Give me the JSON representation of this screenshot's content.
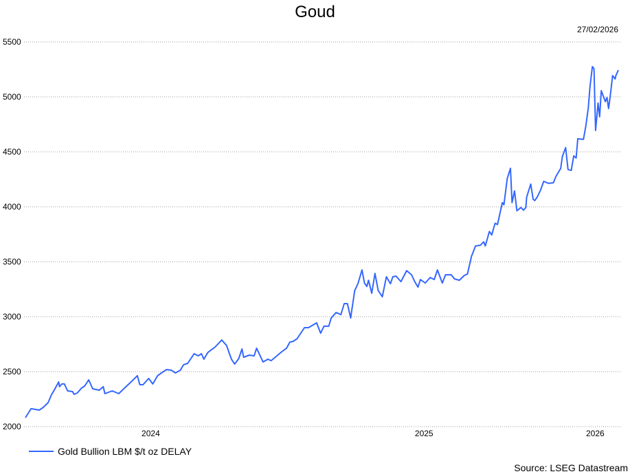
{
  "chart_data": {
    "type": "line",
    "title": "Goud",
    "date_label": "27/02/2026",
    "source": "Source: LSEG Datastream",
    "ylim": [
      2000,
      5500
    ],
    "yticks": [
      2000,
      2500,
      3000,
      3500,
      4000,
      4500,
      5000,
      5500
    ],
    "xticks": [
      "2024",
      "2025",
      "2026"
    ],
    "grid": "horizontal dotted",
    "legend_position": "bottom-left",
    "color": "#3366ff",
    "series": [
      {
        "name": "Gold Bullion LBM $/t oz DELAY",
        "x": [
          "2024-02-27",
          "2024-03-05",
          "2024-03-15",
          "2024-03-20",
          "2024-03-26",
          "2024-03-30",
          "2024-04-03",
          "2024-04-08",
          "2024-04-09",
          "2024-04-12",
          "2024-04-15",
          "2024-04-19",
          "2024-04-25",
          "2024-04-27",
          "2024-05-01",
          "2024-05-06",
          "2024-05-10",
          "2024-05-15",
          "2024-05-20",
          "2024-05-28",
          "2024-06-02",
          "2024-06-04",
          "2024-06-13",
          "2024-06-21",
          "2024-06-30",
          "2024-07-08",
          "2024-07-14",
          "2024-07-17",
          "2024-07-21",
          "2024-07-28",
          "2024-08-02",
          "2024-08-08",
          "2024-08-15",
          "2024-08-19",
          "2024-08-25",
          "2024-08-30",
          "2024-09-05",
          "2024-09-09",
          "2024-09-14",
          "2024-09-22",
          "2024-09-27",
          "2024-10-01",
          "2024-10-04",
          "2024-10-09",
          "2024-10-18",
          "2024-10-26",
          "2024-11-01",
          "2024-11-04",
          "2024-11-07",
          "2024-11-11",
          "2024-11-16",
          "2024-11-20",
          "2024-11-22",
          "2024-11-29",
          "2024-12-05",
          "2024-12-08",
          "2024-12-16",
          "2024-12-22",
          "2024-12-26",
          "2025-01-08",
          "2025-01-14",
          "2025-01-18",
          "2025-01-22",
          "2025-01-27",
          "2025-02-05",
          "2025-02-10",
          "2025-02-20",
          "2025-02-25",
          "2025-03-01",
          "2025-03-07",
          "2025-03-10",
          "2025-03-16",
          "2025-03-22",
          "2025-03-26",
          "2025-03-30",
          "2025-04-03",
          "2025-04-08",
          "2025-04-12",
          "2025-04-17",
          "2025-04-20",
          "2025-04-23",
          "2025-04-25",
          "2025-04-29",
          "2025-05-03",
          "2025-05-07",
          "2025-05-12",
          "2025-05-17",
          "2025-05-22",
          "2025-05-25",
          "2025-05-29",
          "2025-06-04",
          "2025-06-11",
          "2025-06-17",
          "2025-06-21",
          "2025-06-25",
          "2025-06-28",
          "2025-07-04",
          "2025-07-10",
          "2025-07-15",
          "2025-07-19",
          "2025-07-25",
          "2025-07-29",
          "2025-08-05",
          "2025-08-09",
          "2025-08-15",
          "2025-08-21",
          "2025-08-25",
          "2025-08-30",
          "2025-09-04",
          "2025-09-10",
          "2025-09-14",
          "2025-09-16",
          "2025-09-21",
          "2025-09-24",
          "2025-09-28",
          "2025-10-01",
          "2025-10-07",
          "2025-10-09",
          "2025-10-13",
          "2025-10-17",
          "2025-10-19",
          "2025-10-22",
          "2025-10-25",
          "2025-10-30",
          "2025-11-02",
          "2025-11-05",
          "2025-11-06",
          "2025-11-11",
          "2025-11-14",
          "2025-11-16",
          "2025-11-19",
          "2025-11-23",
          "2025-11-27",
          "2025-12-03",
          "2025-12-09",
          "2025-12-12",
          "2025-12-18",
          "2025-12-20",
          "2025-12-24",
          "2025-12-27",
          "2025-12-31",
          "2026-01-03",
          "2026-01-06",
          "2026-01-08",
          "2026-01-15",
          "2026-01-18",
          "2026-01-21",
          "2026-01-23",
          "2026-01-26",
          "2026-01-28",
          "2026-01-30",
          "2026-02-02",
          "2026-02-04",
          "2026-02-06",
          "2026-02-11",
          "2026-02-13",
          "2026-02-15",
          "2026-02-17",
          "2026-02-20",
          "2026-02-23",
          "2026-02-24",
          "2026-02-27"
        ],
        "values": [
          2081,
          2163,
          2150,
          2175,
          2219,
          2288,
          2338,
          2406,
          2363,
          2388,
          2388,
          2325,
          2319,
          2294,
          2306,
          2350,
          2369,
          2425,
          2344,
          2331,
          2363,
          2300,
          2325,
          2300,
          2363,
          2419,
          2463,
          2381,
          2381,
          2438,
          2388,
          2463,
          2500,
          2519,
          2513,
          2488,
          2513,
          2563,
          2575,
          2663,
          2644,
          2663,
          2613,
          2675,
          2725,
          2788,
          2738,
          2675,
          2613,
          2569,
          2619,
          2706,
          2631,
          2650,
          2644,
          2713,
          2588,
          2613,
          2600,
          2681,
          2713,
          2769,
          2775,
          2800,
          2900,
          2900,
          2944,
          2850,
          2913,
          2913,
          2988,
          3038,
          3019,
          3119,
          3119,
          2988,
          3238,
          3300,
          3425,
          3306,
          3275,
          3331,
          3213,
          3394,
          3238,
          3181,
          3363,
          3300,
          3363,
          3369,
          3319,
          3419,
          3381,
          3319,
          3269,
          3338,
          3306,
          3356,
          3338,
          3425,
          3306,
          3381,
          3381,
          3344,
          3331,
          3375,
          3388,
          3550,
          3644,
          3650,
          3681,
          3644,
          3775,
          3744,
          3850,
          3838,
          4038,
          4019,
          4256,
          4350,
          4038,
          4144,
          3963,
          3994,
          3969,
          3994,
          4088,
          4206,
          4069,
          4056,
          4088,
          4150,
          4231,
          4213,
          4219,
          4275,
          4350,
          4456,
          4538,
          4338,
          4331,
          4463,
          4444,
          4619,
          4613,
          4738,
          4900,
          5088,
          5275,
          5256,
          4694,
          4944,
          4819,
          5056,
          4956,
          4994,
          4894,
          5006,
          5194,
          5163,
          5194,
          5244
        ]
      }
    ]
  }
}
